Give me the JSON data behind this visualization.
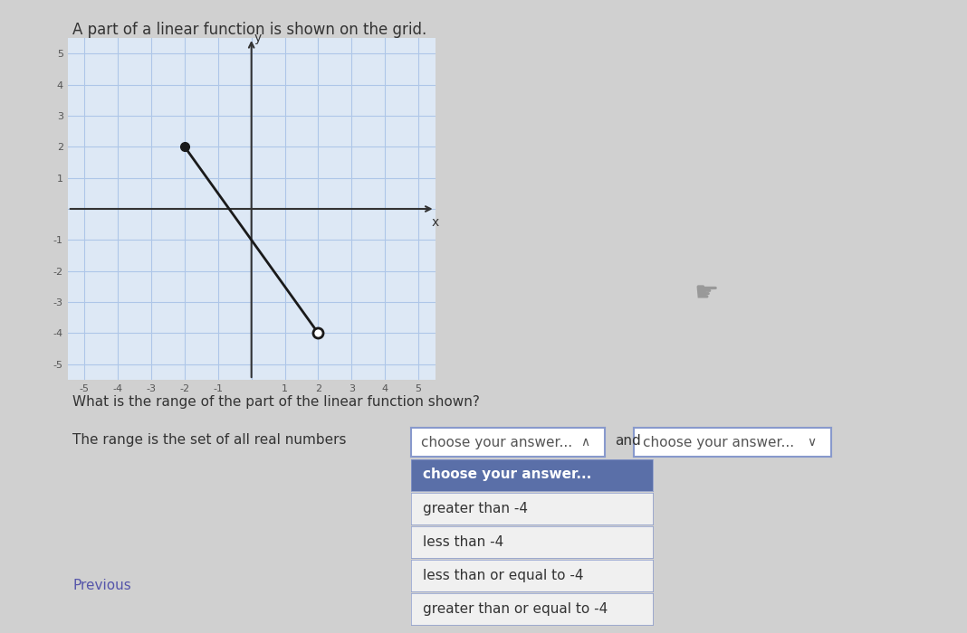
{
  "title": "A part of a linear function is shown on the grid.",
  "graph_xlim": [
    -5.5,
    5.5
  ],
  "graph_ylim": [
    -5.5,
    5.5
  ],
  "x_ticks": [
    -5,
    -4,
    -3,
    -2,
    -1,
    0,
    1,
    2,
    3,
    4,
    5
  ],
  "y_ticks": [
    -5,
    -4,
    -3,
    -2,
    -1,
    0,
    1,
    2,
    3,
    4,
    5
  ],
  "line_x": [
    -2,
    2
  ],
  "line_y": [
    2,
    -4
  ],
  "filled_dot": [
    -2,
    2
  ],
  "open_dot": [
    2,
    -4
  ],
  "line_color": "#1a1a1a",
  "dot_color": "#1a1a1a",
  "grid_color": "#aec6e8",
  "axis_color": "#333333",
  "plot_bg_color": "#dde8f5",
  "outer_bg_color": "#d0d0d0",
  "question_text": "What is the range of the part of the linear function shown?",
  "sentence_text": "The range is the set of all real numbers",
  "dropdown1_text": "choose your answer...",
  "and_text": "and",
  "dropdown2_text": "choose your answer...",
  "dropdown_options": [
    "choose your answer...",
    "greater than -4",
    "less than -4",
    "less than or equal to -4",
    "greater than or equal to -4"
  ],
  "previous_text": "Previous",
  "dropdown_bg_color": "#5a6fa8",
  "dropdown_border_color": "#8899cc",
  "dropdown_text_color": "#ffffff",
  "option_bg_color": "#f0f0f0",
  "option_text_color": "#333333"
}
